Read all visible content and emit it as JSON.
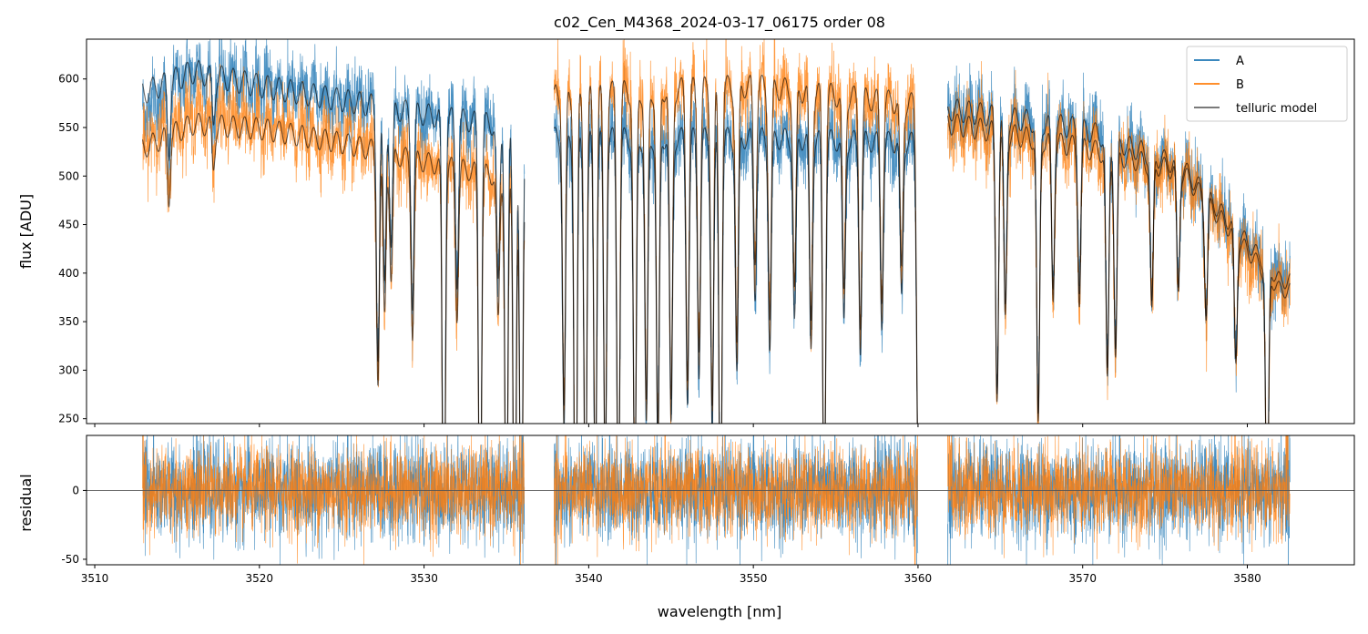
{
  "chart_data": [
    {
      "type": "line",
      "panel": "flux",
      "title": "c02_Cen_M4368_2024-03-17_06175  order 08",
      "xlabel": "",
      "ylabel": "flux [ADU]",
      "xlim": [
        3509.5,
        3586.5
      ],
      "ylim": [
        245,
        641
      ],
      "yticks": [
        250,
        300,
        350,
        400,
        450,
        500,
        550,
        600
      ],
      "grid": false,
      "legend": "top-right",
      "segments": [
        [
          3512.9,
          3536.1
        ],
        [
          3537.9,
          3560.0
        ],
        [
          3561.8,
          3582.6
        ]
      ],
      "baseline_approx": [
        {
          "x": 3513,
          "A": 580,
          "B": 545,
          "model_A": 598,
          "model_B": 540
        },
        {
          "x": 3516,
          "A": 620,
          "B": 575,
          "model_A": 620,
          "model_B": 565
        },
        {
          "x": 3520,
          "A": 605,
          "B": 565,
          "model_A": 605,
          "model_B": 560
        },
        {
          "x": 3525,
          "A": 590,
          "B": 545,
          "model_A": 590,
          "model_B": 545
        },
        {
          "x": 3530,
          "A": 575,
          "B": 525,
          "model_A": 575,
          "model_B": 525
        },
        {
          "x": 3536,
          "A": 560,
          "B": 505,
          "model_A": 560,
          "model_B": 505
        },
        {
          "x": 3538,
          "A": 550,
          "B": 595,
          "model_A": 550,
          "model_B": 595
        },
        {
          "x": 3550,
          "A": 550,
          "B": 605,
          "model_A": 550,
          "model_B": 605
        },
        {
          "x": 3560,
          "A": 545,
          "B": 585,
          "model_A": 545,
          "model_B": 585
        },
        {
          "x": 3562,
          "A": 580,
          "B": 560,
          "model_A": 580,
          "model_B": 565
        },
        {
          "x": 3570,
          "A": 560,
          "B": 540,
          "model_A": 560,
          "model_B": 540
        },
        {
          "x": 3576,
          "A": 520,
          "B": 515,
          "model_A": 520,
          "model_B": 515
        },
        {
          "x": 3582,
          "A": 400,
          "B": 390,
          "model_A": 400,
          "model_B": 390
        }
      ],
      "absorption_lines": [
        {
          "x": 3514.5,
          "depth": 0.12
        },
        {
          "x": 3517.2,
          "depth": 0.08
        },
        {
          "x": 3527.2,
          "depth": 0.45
        },
        {
          "x": 3527.6,
          "depth": 0.32
        },
        {
          "x": 3528.0,
          "depth": 0.25
        },
        {
          "x": 3529.3,
          "depth": 0.35
        },
        {
          "x": 3531.2,
          "depth": 0.9
        },
        {
          "x": 3532.0,
          "depth": 0.3
        },
        {
          "x": 3533.4,
          "depth": 0.85
        },
        {
          "x": 3534.5,
          "depth": 0.3
        },
        {
          "x": 3535.0,
          "depth": 0.8
        },
        {
          "x": 3535.5,
          "depth": 0.9
        },
        {
          "x": 3535.9,
          "depth": 0.9
        },
        {
          "x": 3538.5,
          "depth": 0.55
        },
        {
          "x": 3539.2,
          "depth": 0.9
        },
        {
          "x": 3539.8,
          "depth": 0.75
        },
        {
          "x": 3540.4,
          "depth": 0.7
        },
        {
          "x": 3541.0,
          "depth": 0.65
        },
        {
          "x": 3541.8,
          "depth": 0.75
        },
        {
          "x": 3542.8,
          "depth": 0.7
        },
        {
          "x": 3543.5,
          "depth": 0.55
        },
        {
          "x": 3544.2,
          "depth": 0.6
        },
        {
          "x": 3545.0,
          "depth": 0.55
        },
        {
          "x": 3546.0,
          "depth": 0.5
        },
        {
          "x": 3546.7,
          "depth": 0.45
        },
        {
          "x": 3547.5,
          "depth": 0.55
        },
        {
          "x": 3548.0,
          "depth": 0.8
        },
        {
          "x": 3549.0,
          "depth": 0.45
        },
        {
          "x": 3550.1,
          "depth": 0.3
        },
        {
          "x": 3551.0,
          "depth": 0.4
        },
        {
          "x": 3552.5,
          "depth": 0.35
        },
        {
          "x": 3553.5,
          "depth": 0.4
        },
        {
          "x": 3554.3,
          "depth": 0.75
        },
        {
          "x": 3555.5,
          "depth": 0.35
        },
        {
          "x": 3556.5,
          "depth": 0.4
        },
        {
          "x": 3557.8,
          "depth": 0.35
        },
        {
          "x": 3559.0,
          "depth": 0.3
        },
        {
          "x": 3560.0,
          "depth": 0.6
        },
        {
          "x": 3564.8,
          "depth": 0.5
        },
        {
          "x": 3565.3,
          "depth": 0.35
        },
        {
          "x": 3567.3,
          "depth": 0.55
        },
        {
          "x": 3568.2,
          "depth": 0.3
        },
        {
          "x": 3569.8,
          "depth": 0.3
        },
        {
          "x": 3571.5,
          "depth": 0.45
        },
        {
          "x": 3572.0,
          "depth": 0.4
        },
        {
          "x": 3574.2,
          "depth": 0.3
        },
        {
          "x": 3575.8,
          "depth": 0.25
        },
        {
          "x": 3577.5,
          "depth": 0.25
        },
        {
          "x": 3579.3,
          "depth": 0.3
        },
        {
          "x": 3581.2,
          "depth": 0.65
        }
      ],
      "series": [
        {
          "name": "A",
          "color": "#1f77b4",
          "noise": 18
        },
        {
          "name": "B",
          "color": "#ff7f0e",
          "noise": 18
        },
        {
          "name": "telluric model",
          "color": "#000000"
        }
      ]
    },
    {
      "type": "line",
      "panel": "residual",
      "xlabel": "wavelength [nm]",
      "ylabel": "residual",
      "xlim": [
        3509.5,
        3586.5
      ],
      "ylim": [
        -54,
        40
      ],
      "xticks": [
        3510,
        3520,
        3530,
        3540,
        3550,
        3560,
        3570,
        3580
      ],
      "yticks": [
        0,
        -50
      ],
      "zero_line": 0,
      "grid": false,
      "segments": [
        [
          3512.9,
          3536.1
        ],
        [
          3537.9,
          3560.0
        ],
        [
          3561.8,
          3582.6
        ]
      ],
      "series": [
        {
          "name": "A",
          "color": "#1f77b4",
          "noise": 18
        },
        {
          "name": "B",
          "color": "#ff7f0e",
          "noise": 16
        }
      ]
    }
  ]
}
